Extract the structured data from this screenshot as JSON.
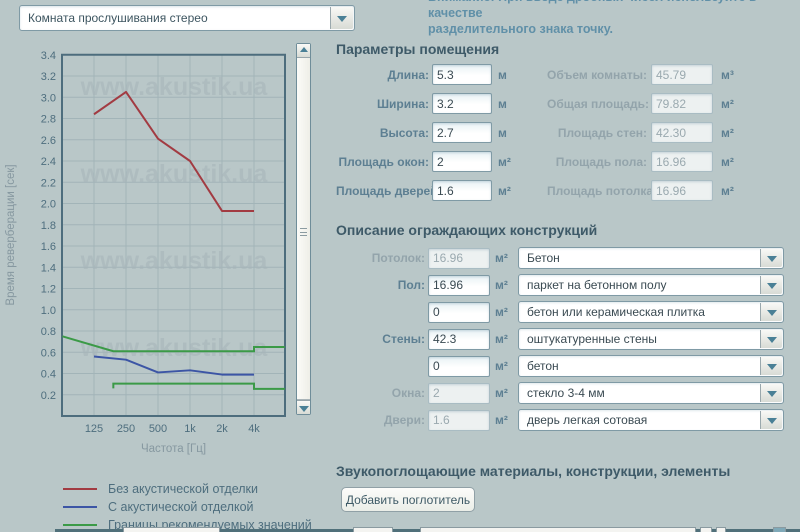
{
  "app": {
    "background": "#b9c7c8",
    "room_select": {
      "value": "Комната прослушивания стерео"
    },
    "note": {
      "line1_clipped": "Внимание! При вводе дробных чисел используйте в качестве",
      "line2": "разделительного знака точку."
    }
  },
  "chart_data": {
    "type": "line",
    "title": "",
    "xlabel": "Частота [Гц]",
    "ylabel": "Время реверберации [сек]",
    "x_values": [
      125,
      250,
      500,
      1000,
      2000,
      4000
    ],
    "x_tick_labels": [
      "125",
      "250",
      "500",
      "1k",
      "2k",
      "4k"
    ],
    "x_scale": "log2",
    "ylim": [
      0,
      3.4
    ],
    "y_tick_step": 0.2,
    "grid": true,
    "legend_position": "bottom-left",
    "watermark": "www.akustik.ua",
    "colors": {
      "grid": "#a2b4b8",
      "frame": "#4d6d7d",
      "tick_text": "#4e6e7e",
      "axis_label": "#8698a0",
      "watermark": "#a7b6ba"
    },
    "series": [
      {
        "name": "Без акустической отделки",
        "color": "#a23b42",
        "values": [
          2.84,
          3.05,
          2.61,
          2.4,
          1.93,
          1.93
        ]
      },
      {
        "name": "С акустической отделкой",
        "color": "#3c55a5",
        "values": [
          0.56,
          0.53,
          0.41,
          0.43,
          0.39,
          0.39
        ]
      }
    ],
    "boundaries": {
      "name": "Границы рекомендуемых значений",
      "color": "#3b9a47",
      "upper": [
        [
          63,
          0.75
        ],
        [
          190,
          0.61
        ],
        [
          4000,
          0.61
        ],
        [
          4000,
          0.65
        ],
        [
          7800,
          0.65
        ]
      ],
      "lower": [
        [
          190,
          0.26
        ],
        [
          190,
          0.305
        ],
        [
          4000,
          0.305
        ],
        [
          4000,
          0.255
        ],
        [
          7800,
          0.255
        ]
      ]
    },
    "legend": [
      {
        "label": "Без акустической отделки",
        "color": "#a23b42"
      },
      {
        "label": "С акустической отделкой",
        "color": "#3c55a5"
      },
      {
        "label": "Границы рекомендуемых значений",
        "color": "#3b9a47"
      }
    ]
  },
  "params": {
    "title": "Параметры помещения",
    "left": [
      {
        "label": "Длина:",
        "value": "5.3",
        "unit": "м",
        "disabled": false
      },
      {
        "label": "Ширина:",
        "value": "3.2",
        "unit": "м",
        "disabled": false
      },
      {
        "label": "Высота:",
        "value": "2.7",
        "unit": "м",
        "disabled": false
      },
      {
        "label": "Площадь окон:",
        "value": "2",
        "unit": "м²",
        "disabled": false
      },
      {
        "label": "Площадь дверей:",
        "value": "1.6",
        "unit": "м²",
        "disabled": false
      }
    ],
    "right": [
      {
        "label": "Объем комнаты:",
        "value": "45.79",
        "unit": "м³",
        "disabled": true
      },
      {
        "label": "Общая площадь:",
        "value": "79.82",
        "unit": "м²",
        "disabled": true
      },
      {
        "label": "Площадь стен:",
        "value": "42.30",
        "unit": "м²",
        "disabled": true
      },
      {
        "label": "Площадь пола:",
        "value": "16.96",
        "unit": "м²",
        "disabled": true
      },
      {
        "label": "Площадь потолка:",
        "value": "16.96",
        "unit": "м²",
        "disabled": true
      }
    ]
  },
  "constructions": {
    "title": "Описание ограждающих конструкций",
    "rows": [
      {
        "label": "Потолок:",
        "value": "16.96",
        "unit": "м²",
        "disabled": true,
        "material": "Бетон"
      },
      {
        "label": "Пол:",
        "value": "16.96",
        "unit": "м²",
        "disabled": false,
        "material": "паркет на бетонном полу"
      },
      {
        "label": "",
        "value": "0",
        "unit": "м²",
        "disabled": false,
        "material": "бетон или керамическая плитка"
      },
      {
        "label": "Стены:",
        "value": "42.3",
        "unit": "м²",
        "disabled": false,
        "material": "оштукатуренные стены"
      },
      {
        "label": "",
        "value": "0",
        "unit": "м²",
        "disabled": false,
        "material": "бетон"
      },
      {
        "label": "Окна:",
        "value": "2",
        "unit": "м²",
        "disabled": true,
        "material": "стекло 3-4 мм"
      },
      {
        "label": "Двери:",
        "value": "1.6",
        "unit": "м²",
        "disabled": true,
        "material": "дверь легкая сотовая"
      }
    ]
  },
  "absorbers": {
    "title": "Звукопоглощающие материалы, конструкции, элементы",
    "add_button": "Добавить поглотитель"
  }
}
